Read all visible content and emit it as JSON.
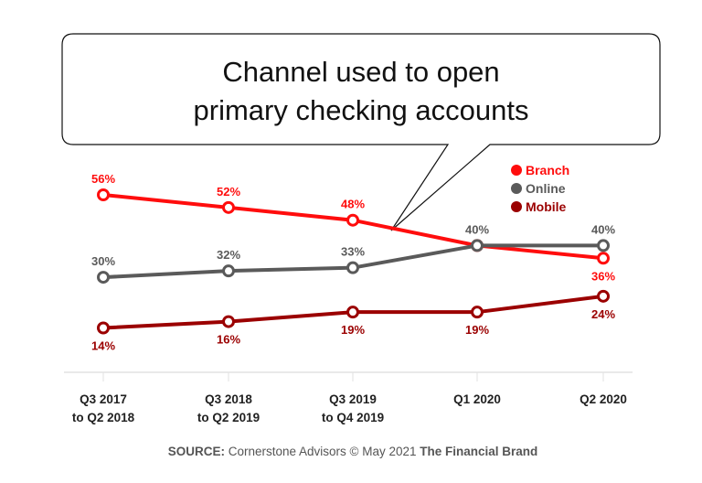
{
  "chart_data": {
    "type": "line",
    "title": [
      "Channel used to open",
      "primary checking accounts"
    ],
    "categories": [
      [
        "Q3 2017",
        "to Q2 2018"
      ],
      [
        "Q3 2018",
        "to Q2 2019"
      ],
      [
        "Q3 2019",
        "to Q4 2019"
      ],
      [
        "Q1 2020"
      ],
      [
        "Q2 2020"
      ]
    ],
    "ylim": [
      0,
      56
    ],
    "grid": false,
    "legend_position": "top-right",
    "series": [
      {
        "name": "Branch",
        "color": "#ff0d0d",
        "values": [
          56,
          52,
          48,
          40,
          36
        ],
        "labels": [
          "56%",
          "52%",
          "48%",
          "",
          "36%"
        ],
        "label_pos": [
          "above",
          "above",
          "above",
          "none",
          "below"
        ]
      },
      {
        "name": "Online",
        "color": "#5a5a5a",
        "values": [
          30,
          32,
          33,
          40,
          40
        ],
        "labels": [
          "30%",
          "32%",
          "33%",
          "40%",
          "40%"
        ],
        "label_pos": [
          "above",
          "above",
          "above",
          "above",
          "above"
        ]
      },
      {
        "name": "Mobile",
        "color": "#9b0000",
        "values": [
          14,
          16,
          19,
          19,
          24
        ],
        "labels": [
          "14%",
          "16%",
          "19%",
          "19%",
          "24%"
        ],
        "label_pos": [
          "below",
          "below",
          "below",
          "below",
          "below"
        ]
      }
    ]
  },
  "source": {
    "prefix": "SOURCE:",
    "text": " Cornerstone Advisors © May 2021 ",
    "brand": "The Financial Brand"
  }
}
